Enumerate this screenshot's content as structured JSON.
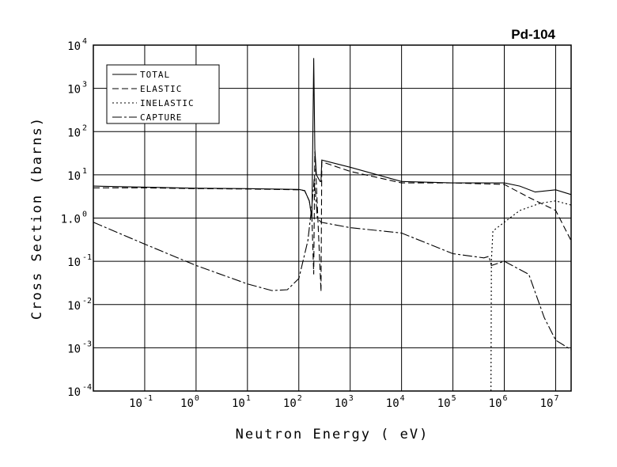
{
  "chart_data": {
    "type": "line",
    "title": "Pd-104",
    "xlabel": "Neutron Energy ( eV)",
    "ylabel": "Cross Section (barns)",
    "x_scale": "log",
    "y_scale": "log",
    "xlim": [
      0.01,
      20000000
    ],
    "ylim": [
      0.0001,
      10000
    ],
    "grid": true,
    "legend_position": "top-left",
    "x_ticks": [
      {
        "base": "10",
        "exp": "-1"
      },
      {
        "base": "10",
        "exp": "0"
      },
      {
        "base": "10",
        "exp": "1"
      },
      {
        "base": "10",
        "exp": "2"
      },
      {
        "base": "10",
        "exp": "3"
      },
      {
        "base": "10",
        "exp": "4"
      },
      {
        "base": "10",
        "exp": "5"
      },
      {
        "base": "10",
        "exp": "6"
      },
      {
        "base": "10",
        "exp": "7"
      }
    ],
    "y_ticks": [
      {
        "base": "10",
        "exp": "-4"
      },
      {
        "base": "10",
        "exp": "-3"
      },
      {
        "base": "10",
        "exp": "-2"
      },
      {
        "base": "10",
        "exp": "-1"
      },
      {
        "base": "1.0",
        "exp": "0"
      },
      {
        "base": "10",
        "exp": "1"
      },
      {
        "base": "10",
        "exp": "2"
      },
      {
        "base": "10",
        "exp": "3"
      },
      {
        "base": "10",
        "exp": "4"
      }
    ],
    "series": [
      {
        "name": "TOTAL",
        "dash": "",
        "points": [
          [
            0.01,
            5.5
          ],
          [
            0.1,
            5.2
          ],
          [
            1,
            4.9
          ],
          [
            10,
            4.8
          ],
          [
            100,
            4.6
          ],
          [
            130,
            4.3
          ],
          [
            160,
            2.5
          ],
          [
            180,
            1.0
          ],
          [
            195,
            5000
          ],
          [
            205,
            40
          ],
          [
            220,
            10
          ],
          [
            260,
            7
          ],
          [
            270,
            7
          ],
          [
            280,
            22
          ],
          [
            1000,
            15
          ],
          [
            10000,
            7
          ],
          [
            100000,
            6.5
          ],
          [
            1000000,
            6.5
          ],
          [
            2000000,
            5.5
          ],
          [
            4000000,
            4
          ],
          [
            10000000,
            4.5
          ],
          [
            20000000,
            3.5
          ]
        ]
      },
      {
        "name": "ELASTIC",
        "dash": "8,4",
        "points": [
          [
            0.01,
            5
          ],
          [
            0.1,
            5
          ],
          [
            1,
            4.8
          ],
          [
            10,
            4.7
          ],
          [
            100,
            4.5
          ],
          [
            130,
            4.3
          ],
          [
            160,
            2.5
          ],
          [
            180,
            1.0
          ],
          [
            195,
            0.05
          ],
          [
            205,
            35
          ],
          [
            220,
            6
          ],
          [
            270,
            0.02
          ],
          [
            280,
            20
          ],
          [
            1000,
            12
          ],
          [
            10000,
            6.5
          ],
          [
            100000,
            6.5
          ],
          [
            1000000,
            6
          ],
          [
            3000000,
            3
          ],
          [
            10000000,
            1.5
          ],
          [
            20000000,
            0.3
          ]
        ]
      },
      {
        "name": "INELASTIC",
        "dash": "2,3",
        "points": [
          [
            550000,
            0.0001
          ],
          [
            560000,
            0.1
          ],
          [
            600000,
            0.5
          ],
          [
            1000000,
            0.8
          ],
          [
            2000000,
            1.5
          ],
          [
            5000000,
            2.2
          ],
          [
            10000000,
            2.5
          ],
          [
            20000000,
            2.0
          ]
        ]
      },
      {
        "name": "CAPTURE",
        "dash": "12,3,3,3",
        "points": [
          [
            0.01,
            0.8
          ],
          [
            0.1,
            0.25
          ],
          [
            1,
            0.08
          ],
          [
            10,
            0.03
          ],
          [
            30,
            0.021
          ],
          [
            60,
            0.022
          ],
          [
            100,
            0.04
          ],
          [
            150,
            0.3
          ],
          [
            180,
            2
          ],
          [
            200,
            8
          ],
          [
            230,
            1
          ],
          [
            270,
            0.8
          ],
          [
            1000,
            0.6
          ],
          [
            10000,
            0.45
          ],
          [
            100000,
            0.15
          ],
          [
            400000,
            0.12
          ],
          [
            500000,
            0.13
          ],
          [
            560000,
            0.08
          ],
          [
            1000000,
            0.1
          ],
          [
            3000000,
            0.05
          ],
          [
            6000000,
            0.005
          ],
          [
            10000000,
            0.0015
          ],
          [
            20000000,
            0.0009
          ]
        ]
      }
    ]
  }
}
